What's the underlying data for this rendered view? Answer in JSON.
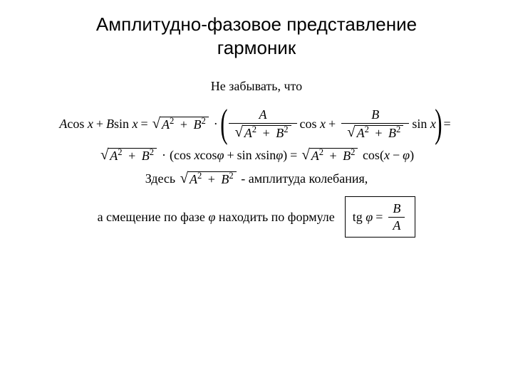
{
  "colors": {
    "background": "#ffffff",
    "text": "#000000",
    "rule": "#000000"
  },
  "typography": {
    "title_font": "Arial",
    "title_size_pt": 20,
    "body_font": "Times New Roman",
    "body_size_pt": 14
  },
  "title": {
    "line1": "Амплитудно-фазовое представление",
    "line2": "гармоник"
  },
  "note": "Не забывать, что",
  "symbols": {
    "A": "A",
    "B": "B",
    "x": "x",
    "phi": "φ",
    "sq": "2"
  },
  "words": {
    "cos": "cos",
    "sin": "sin",
    "tg": "tg",
    "plus": "+",
    "minus": "−",
    "eq": "=",
    "dot": "·"
  },
  "line3_prefix": "Здесь",
  "line3_suffix": "- амплитуда колебания,",
  "line4_prefix": "а смещение по фазе",
  "line4_middle": "находить по формуле"
}
